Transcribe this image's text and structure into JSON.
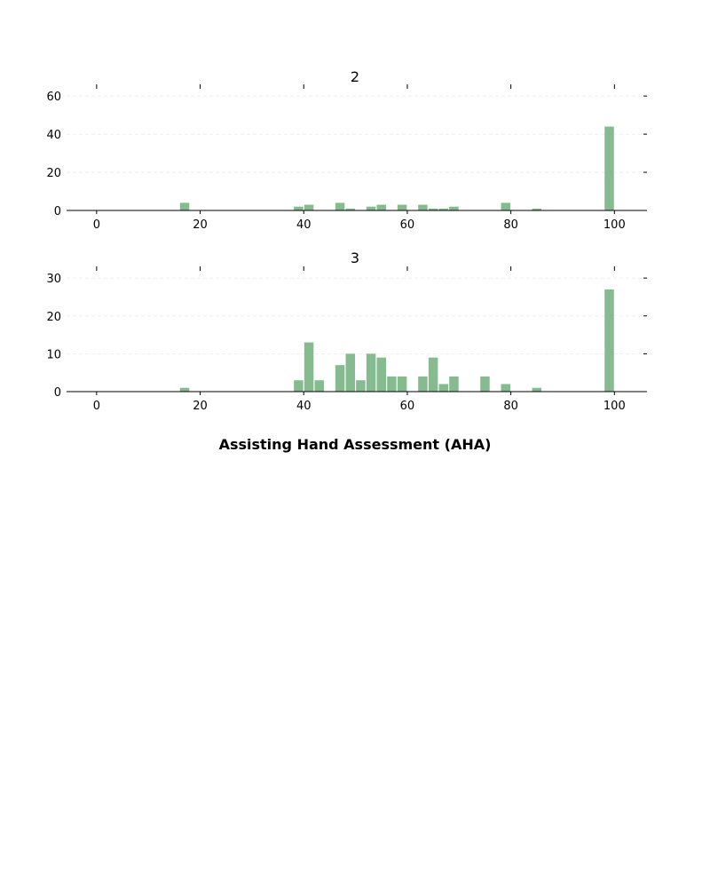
{
  "chart_data": {
    "type": "bar",
    "xlabel": "Assisting Hand Assessment (AHA)",
    "bar_color": "#86bb8f",
    "grid": "horizontal, dashed, faint",
    "bin_width": 1.8,
    "xlim": [
      -5.8,
      105.6
    ],
    "xticks": [
      0,
      20,
      40,
      60,
      80,
      100
    ],
    "panels": [
      {
        "title": "2",
        "ylim": [
          0,
          61
        ],
        "yticks": [
          0,
          20,
          40,
          60
        ],
        "x": [
          17,
          39,
          41,
          47,
          49,
          53,
          55,
          59,
          63,
          65,
          67,
          69,
          79,
          85,
          99
        ],
        "values": [
          4,
          2,
          3,
          4,
          1,
          2,
          3,
          3,
          3,
          1,
          1,
          2,
          4,
          1,
          44
        ]
      },
      {
        "title": "3",
        "ylim": [
          0,
          30.5
        ],
        "yticks": [
          0,
          10,
          20,
          30
        ],
        "x": [
          17,
          39,
          41,
          43,
          47,
          49,
          51,
          53,
          55,
          57,
          59,
          63,
          65,
          67,
          69,
          75,
          79,
          85,
          99
        ],
        "values": [
          1,
          3,
          13,
          3,
          7,
          10,
          3,
          10,
          9,
          4,
          4,
          4,
          9,
          2,
          4,
          4,
          2,
          1,
          27
        ]
      }
    ]
  }
}
